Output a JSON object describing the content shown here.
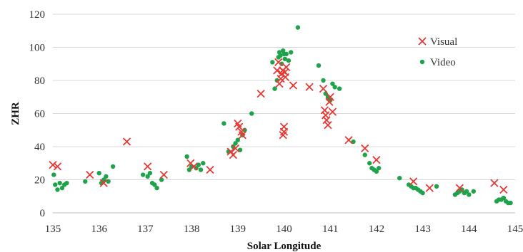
{
  "chart_data": {
    "type": "scatter",
    "xlabel": "Solar Longitude",
    "ylabel": "ZHR",
    "xlim": [
      135,
      145
    ],
    "ylim": [
      0,
      120
    ],
    "xticks": [
      135,
      136,
      137,
      138,
      139,
      140,
      141,
      142,
      143,
      144,
      145
    ],
    "yticks": [
      0,
      20,
      40,
      60,
      80,
      100,
      120
    ],
    "grid": "horizontal",
    "legend_position": "right",
    "series": [
      {
        "name": "Visual",
        "marker": "x",
        "color": "#e53935",
        "points": [
          [
            135.0,
            29
          ],
          [
            135.1,
            28
          ],
          [
            135.8,
            23
          ],
          [
            136.1,
            18
          ],
          [
            136.6,
            43
          ],
          [
            137.05,
            28
          ],
          [
            137.4,
            23
          ],
          [
            137.98,
            30
          ],
          [
            138.05,
            28
          ],
          [
            138.4,
            26
          ],
          [
            138.85,
            37
          ],
          [
            138.9,
            35
          ],
          [
            138.95,
            39
          ],
          [
            139.0,
            54
          ],
          [
            139.03,
            52
          ],
          [
            139.08,
            49
          ],
          [
            139.1,
            47
          ],
          [
            139.5,
            72
          ],
          [
            139.85,
            86
          ],
          [
            139.88,
            91
          ],
          [
            139.9,
            78
          ],
          [
            139.93,
            81
          ],
          [
            139.95,
            84
          ],
          [
            139.97,
            86
          ],
          [
            139.98,
            47
          ],
          [
            140.0,
            49
          ],
          [
            140.0,
            52
          ],
          [
            140.02,
            85
          ],
          [
            140.03,
            82
          ],
          [
            140.05,
            88
          ],
          [
            140.2,
            77
          ],
          [
            140.55,
            76
          ],
          [
            140.85,
            75
          ],
          [
            140.88,
            62
          ],
          [
            140.9,
            59
          ],
          [
            140.92,
            56
          ],
          [
            140.95,
            53
          ],
          [
            140.98,
            67
          ],
          [
            141.0,
            70
          ],
          [
            141.05,
            61
          ],
          [
            141.4,
            44
          ],
          [
            141.75,
            39
          ],
          [
            142.0,
            32
          ],
          [
            142.8,
            19
          ],
          [
            143.15,
            15
          ],
          [
            143.8,
            15
          ],
          [
            144.55,
            18
          ],
          [
            144.75,
            14
          ]
        ]
      },
      {
        "name": "Video",
        "marker": "dot",
        "color": "#1fa34a",
        "points": [
          [
            135.02,
            23
          ],
          [
            135.05,
            17
          ],
          [
            135.1,
            14
          ],
          [
            135.15,
            18
          ],
          [
            135.2,
            15
          ],
          [
            135.25,
            17
          ],
          [
            135.3,
            18
          ],
          [
            135.7,
            19
          ],
          [
            136.0,
            24
          ],
          [
            136.05,
            18
          ],
          [
            136.1,
            20
          ],
          [
            136.15,
            22
          ],
          [
            136.2,
            19
          ],
          [
            136.3,
            28
          ],
          [
            136.95,
            23
          ],
          [
            137.05,
            22
          ],
          [
            137.1,
            24
          ],
          [
            137.15,
            18
          ],
          [
            137.2,
            17
          ],
          [
            137.25,
            15
          ],
          [
            137.35,
            20
          ],
          [
            137.9,
            34
          ],
          [
            137.95,
            26
          ],
          [
            138.0,
            28
          ],
          [
            138.1,
            27
          ],
          [
            138.15,
            29
          ],
          [
            138.2,
            26
          ],
          [
            138.25,
            30
          ],
          [
            138.7,
            54
          ],
          [
            138.8,
            37
          ],
          [
            138.9,
            40
          ],
          [
            138.95,
            42
          ],
          [
            139.0,
            44
          ],
          [
            139.05,
            38
          ],
          [
            139.1,
            47
          ],
          [
            139.15,
            50
          ],
          [
            139.3,
            60
          ],
          [
            139.75,
            91
          ],
          [
            139.8,
            75
          ],
          [
            139.85,
            80
          ],
          [
            139.88,
            94
          ],
          [
            139.9,
            97
          ],
          [
            139.92,
            95
          ],
          [
            139.95,
            90
          ],
          [
            139.98,
            98
          ],
          [
            140.0,
            96
          ],
          [
            140.02,
            93
          ],
          [
            140.05,
            96
          ],
          [
            140.1,
            92
          ],
          [
            140.15,
            97
          ],
          [
            140.3,
            112
          ],
          [
            140.75,
            89
          ],
          [
            140.85,
            80
          ],
          [
            140.9,
            72
          ],
          [
            140.95,
            70
          ],
          [
            141.0,
            68
          ],
          [
            141.05,
            78
          ],
          [
            141.1,
            76
          ],
          [
            141.2,
            75
          ],
          [
            141.5,
            43
          ],
          [
            141.75,
            35
          ],
          [
            141.85,
            30
          ],
          [
            141.9,
            27
          ],
          [
            141.95,
            26
          ],
          [
            142.0,
            25
          ],
          [
            142.05,
            27
          ],
          [
            142.5,
            21
          ],
          [
            142.7,
            17
          ],
          [
            142.75,
            16
          ],
          [
            142.8,
            15
          ],
          [
            142.85,
            15
          ],
          [
            142.9,
            14
          ],
          [
            142.95,
            13
          ],
          [
            143.0,
            12
          ],
          [
            143.3,
            16
          ],
          [
            143.7,
            11
          ],
          [
            143.75,
            12
          ],
          [
            143.8,
            13
          ],
          [
            143.85,
            14
          ],
          [
            143.9,
            12
          ],
          [
            143.95,
            13
          ],
          [
            144.0,
            11
          ],
          [
            144.1,
            13
          ],
          [
            144.6,
            7
          ],
          [
            144.65,
            8
          ],
          [
            144.7,
            8
          ],
          [
            144.75,
            9
          ],
          [
            144.8,
            7
          ],
          [
            144.85,
            6
          ],
          [
            144.9,
            6
          ]
        ]
      }
    ]
  }
}
